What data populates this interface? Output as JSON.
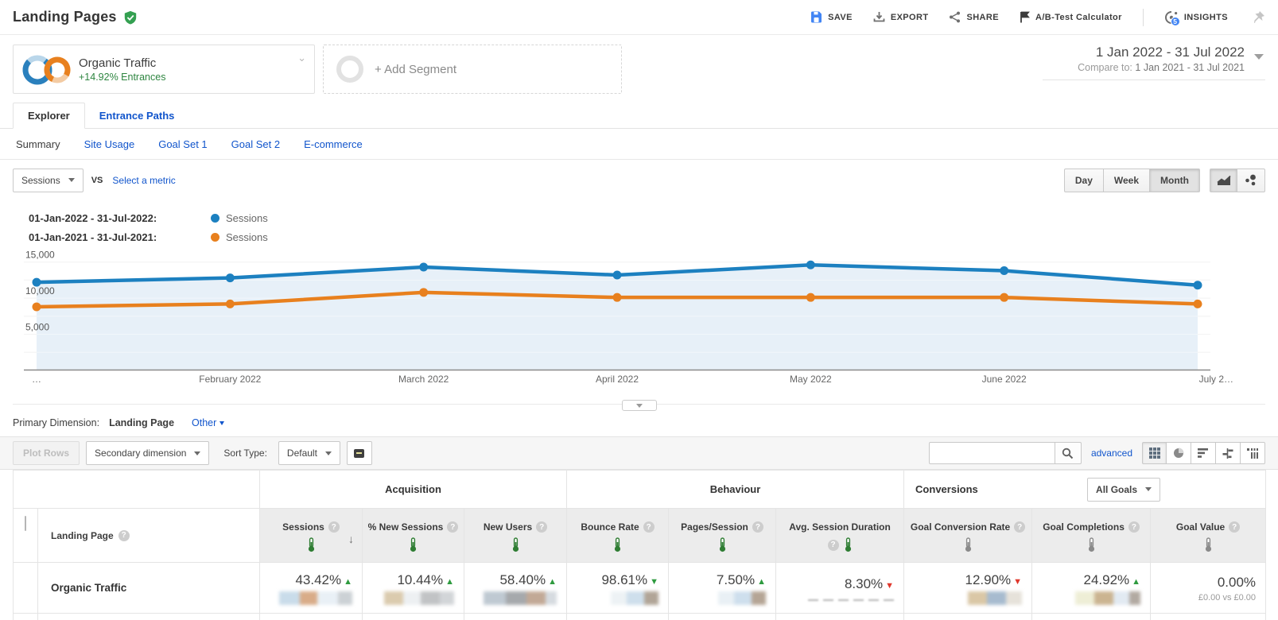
{
  "header": {
    "title": "Landing Pages",
    "actions": {
      "save": "SAVE",
      "export": "EXPORT",
      "share": "SHARE",
      "ab_test": "A/B-Test Calculator",
      "insights": "INSIGHTS",
      "insights_badge": "5"
    }
  },
  "segments": {
    "primary": {
      "name": "Organic Traffic",
      "delta": "+14.92% Entrances"
    },
    "add_label": "+ Add Segment"
  },
  "date_range": {
    "primary": "1 Jan 2022 - 31 Jul 2022",
    "compare_prefix": "Compare to:",
    "compare": "1 Jan 2021 - 31 Jul 2021"
  },
  "tabs": {
    "explorer": "Explorer",
    "entrance_paths": "Entrance Paths"
  },
  "subtabs": [
    "Summary",
    "Site Usage",
    "Goal Set 1",
    "Goal Set 2",
    "E-commerce"
  ],
  "metric_bar": {
    "metric": "Sessions",
    "vs": "VS",
    "select_metric": "Select a metric",
    "granularity": [
      "Day",
      "Week",
      "Month"
    ],
    "active_granularity": "Month"
  },
  "legend": [
    {
      "range": "01-Jan-2022 - 31-Jul-2022:",
      "series": "Sessions",
      "color": "#1c80c0"
    },
    {
      "range": "01-Jan-2021 - 31-Jul-2021:",
      "series": "Sessions",
      "color": "#e8801e"
    }
  ],
  "chart_data": {
    "type": "line",
    "title": "Sessions by month, current vs previous year",
    "x_labels": [
      "…",
      "February 2022",
      "March 2022",
      "April 2022",
      "May 2022",
      "June 2022",
      "July 2…"
    ],
    "series": [
      {
        "name": "Sessions 01-Jan-2022 - 31-Jul-2022",
        "color": "#1c80c0",
        "values": [
          12200,
          12800,
          14300,
          13200,
          14600,
          13800,
          11800
        ],
        "area": true
      },
      {
        "name": "Sessions 01-Jan-2021 - 31-Jul-2021",
        "color": "#e8801e",
        "values": [
          8800,
          9200,
          10800,
          10100,
          10100,
          10100,
          9200
        ],
        "area": false
      }
    ],
    "ylim": [
      0,
      16500
    ],
    "y_ticks": [
      2500,
      5000,
      7500,
      10000,
      12500,
      15000
    ],
    "y_tick_labels": {
      "5000": "5,000",
      "10000": "10,000",
      "15000": "15,000"
    },
    "grid": true,
    "area_color": "#e7f0f8",
    "legend_position": "top-left"
  },
  "primary_dimension": {
    "label": "Primary Dimension:",
    "value": "Landing Page",
    "other": "Other"
  },
  "toolbar": {
    "plot_rows": "Plot Rows",
    "secondary_dimension": "Secondary dimension",
    "sort_label": "Sort Type:",
    "sort_value": "Default",
    "search_value": "",
    "advanced": "advanced"
  },
  "table": {
    "groups": {
      "acquisition": "Acquisition",
      "behaviour": "Behaviour",
      "conversions": "Conversions"
    },
    "all_goals": "All Goals",
    "dimension_col": "Landing Page",
    "columns": [
      {
        "label": "Sessions",
        "thermo": "green",
        "sorted": true
      },
      {
        "label": "% New Sessions",
        "thermo": "green"
      },
      {
        "label": "New Users",
        "thermo": "green"
      },
      {
        "label": "Bounce Rate",
        "thermo": "green"
      },
      {
        "label": "Pages/Session",
        "thermo": "green"
      },
      {
        "label": "Avg. Session Duration",
        "thermo": "green",
        "help_below": true
      },
      {
        "label": "Goal Conversion Rate",
        "thermo": "gray"
      },
      {
        "label": "Goal Completions",
        "thermo": "gray"
      },
      {
        "label": "Goal Value",
        "thermo": "gray"
      }
    ],
    "row": {
      "name": "Organic Traffic",
      "cells": [
        {
          "value": "43.42%",
          "arrow": "up",
          "arrow_color": "green",
          "blur": [
            [
              "#c9dcea",
              26
            ],
            [
              "#d9ac88",
              22
            ],
            [
              "#e9f0f6",
              26
            ],
            [
              "#ccd1d5",
              18
            ]
          ]
        },
        {
          "value": "10.44%",
          "arrow": "up",
          "arrow_color": "green",
          "blur": [
            [
              "#dbcbae",
              24
            ],
            [
              "#edf0f2",
              22
            ],
            [
              "#c1c3c5",
              24
            ],
            [
              "#d2d5d8",
              18
            ]
          ]
        },
        {
          "value": "58.40%",
          "arrow": "up",
          "arrow_color": "green",
          "blur": [
            [
              "#bfc9d2",
              28
            ],
            [
              "#a6a9ac",
              26
            ],
            [
              "#c2a996",
              24
            ],
            [
              "#d6dbe0",
              14
            ]
          ]
        },
        {
          "value": "98.61%",
          "arrow": "down",
          "arrow_color": "green",
          "blur": [
            [
              "#edf2f5",
              20
            ],
            [
              "#cedfec",
              22
            ],
            [
              "#b1a597",
              18
            ]
          ]
        },
        {
          "value": "7.50%",
          "arrow": "up",
          "arrow_color": "green",
          "blur": [
            [
              "#e9f0f5",
              20
            ],
            [
              "#cedfed",
              22
            ],
            [
              "#b5a595",
              18
            ]
          ]
        },
        {
          "value": "8.30%",
          "arrow": "down",
          "arrow_color": "red",
          "blur_dashes": true
        },
        {
          "value": "12.90%",
          "arrow": "down",
          "arrow_color": "red",
          "blur": [
            [
              "#dac7a6",
              24
            ],
            [
              "#a7bbcf",
              24
            ],
            [
              "#e6e2da",
              20
            ]
          ]
        },
        {
          "value": "24.92%",
          "arrow": "up",
          "arrow_color": "green",
          "blur": [
            [
              "#eeeed6",
              24
            ],
            [
              "#cbb491",
              24
            ],
            [
              "#e2eaf2",
              20
            ],
            [
              "#b2aaa2",
              14
            ]
          ]
        },
        {
          "value": "0.00%",
          "sub": "£0.00 vs £0.00"
        }
      ]
    }
  },
  "colors": {
    "accent_blue": "#1c80c0",
    "accent_orange": "#e8801e",
    "link_blue": "#1155cc",
    "positive_green": "#2e9b3f",
    "negative_red": "#e0372c",
    "save_blue": "#4285f4",
    "verified_green": "#34a051"
  }
}
